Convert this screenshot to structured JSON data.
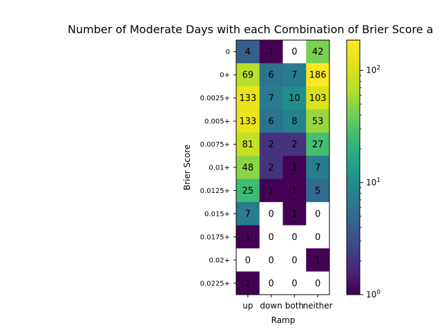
{
  "chart_data": {
    "type": "heatmap",
    "title": "Number of Moderate Days with each Combination of Brier Score a",
    "xlabel": "Ramp",
    "ylabel": "Brier Score",
    "categories": [
      "up",
      "down",
      "both",
      "neither"
    ],
    "rows": [
      "0",
      "0+",
      "0.0025+",
      "0.005+",
      "0.0075+",
      "0.01+",
      "0.0125+",
      "0.015+",
      "0.0175+",
      "0.02+",
      "0.0225+"
    ],
    "values": [
      [
        4,
        1,
        0,
        42
      ],
      [
        69,
        6,
        7,
        186
      ],
      [
        133,
        7,
        10,
        103
      ],
      [
        133,
        6,
        8,
        53
      ],
      [
        81,
        2,
        2,
        27
      ],
      [
        48,
        2,
        1,
        7
      ],
      [
        25,
        1,
        1,
        5
      ],
      [
        7,
        0,
        1,
        0
      ],
      [
        1,
        0,
        0,
        0
      ],
      [
        0,
        0,
        0,
        1
      ],
      [
        1,
        0,
        0,
        0
      ]
    ],
    "colorscale": "viridis",
    "color_scale_type": "log",
    "color_range": [
      1,
      186
    ],
    "colorbar_ticks": [
      {
        "value": 1,
        "label": "10^0"
      },
      {
        "value": 10,
        "label": "10^1"
      },
      {
        "value": 100,
        "label": "10^2"
      }
    ],
    "zero_cells_color": "#ffffff",
    "grid": false,
    "legend": "colorbar-right"
  }
}
